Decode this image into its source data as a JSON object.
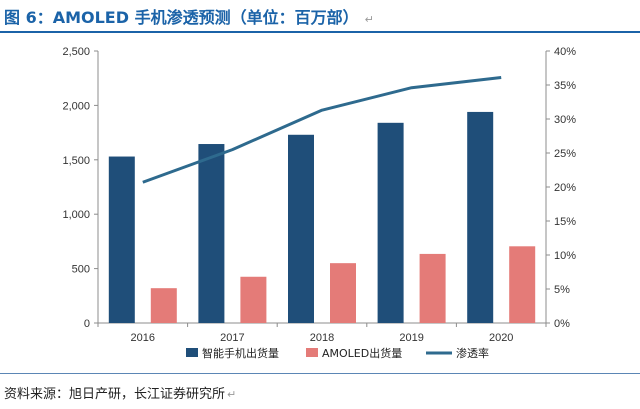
{
  "title": "图 6：AMOLED 手机渗透预测（单位：百万部）",
  "return_mark": "↵",
  "source": "资料来源：旭日产研，长江证券研究所",
  "colors": {
    "title": "#1b63a8",
    "smartphone": "#1f4e79",
    "amoled": "#e47b78",
    "penetration": "#2e6a8e"
  },
  "chart_data": {
    "type": "bar",
    "categories": [
      "2016",
      "2017",
      "2018",
      "2019",
      "2020"
    ],
    "series": [
      {
        "name": "智能手机出货量",
        "kind": "bar",
        "axis": "left",
        "values": [
          1530,
          1645,
          1730,
          1840,
          1940
        ]
      },
      {
        "name": "AMOLED出货量",
        "kind": "bar",
        "axis": "left",
        "values": [
          320,
          425,
          550,
          635,
          705
        ]
      },
      {
        "name": "渗透率",
        "kind": "line",
        "axis": "right",
        "values": [
          20.7,
          25.5,
          31.3,
          34.6,
          36.1
        ]
      }
    ],
    "ylim": [
      0,
      2500
    ],
    "y_ticks": [
      "0",
      "500",
      "1,000",
      "1,500",
      "2,000",
      "2,500"
    ],
    "y2lim": [
      0,
      40
    ],
    "y2_ticks": [
      "0%",
      "5%",
      "10%",
      "15%",
      "20%",
      "25%",
      "30%",
      "35%",
      "40%"
    ],
    "legend_position": "bottom",
    "grid": false
  }
}
